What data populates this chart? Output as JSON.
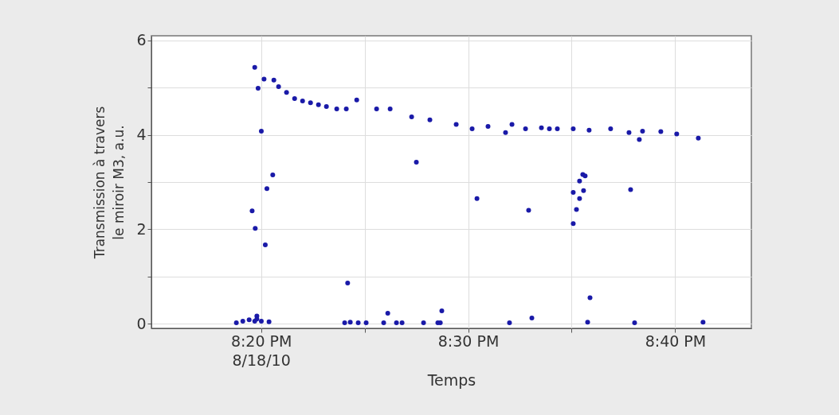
{
  "chart_data": {
    "type": "scatter",
    "xlabel": "Temps",
    "ylabel": "Transmission à travers\nle miroir M3, a.u.",
    "xlim": [
      20.245,
      20.728
    ],
    "ylim": [
      -0.1,
      6.1
    ],
    "xticks": [
      {
        "value": 20.3333,
        "label": "8:20 PM\n8/18/10"
      },
      {
        "value": 20.4167,
        "label": null
      },
      {
        "value": 20.5,
        "label": "8:30 PM"
      },
      {
        "value": 20.5833,
        "label": null
      },
      {
        "value": 20.6667,
        "label": "8:40 PM"
      }
    ],
    "yticks": [
      0,
      {
        "value": 1,
        "label": null
      },
      2,
      {
        "value": 3,
        "label": null
      },
      4,
      {
        "value": 5,
        "label": null
      },
      6
    ],
    "grid": true,
    "marker": "circle",
    "series": [
      {
        "color": "#1a1aa8",
        "x": [
          20.3134,
          20.3186,
          20.3237,
          20.3261,
          20.3282,
          20.3286,
          20.3299,
          20.3309,
          20.3335,
          20.3357,
          20.3367,
          20.338,
          20.3397,
          20.3427,
          20.3282,
          20.3299,
          20.3335,
          20.3436,
          20.3474,
          20.3538,
          20.3603,
          20.3667,
          20.3731,
          20.3795,
          20.3859,
          20.3942,
          20.4019,
          20.403,
          20.4006,
          20.4051,
          20.4103,
          20.4115,
          20.4179,
          20.4263,
          20.432,
          20.4353,
          20.4372,
          20.4423,
          20.4468,
          20.4545,
          20.4583,
          20.4641,
          20.4692,
          20.4756,
          20.4776,
          20.4788,
          20.4904,
          20.5032,
          20.5071,
          20.516,
          20.5301,
          20.5333,
          20.5353,
          20.5462,
          20.5487,
          20.5513,
          20.559,
          20.5654,
          20.5718,
          20.5846,
          20.5846,
          20.5872,
          20.5897,
          20.5846,
          20.5929,
          20.5897,
          20.5923,
          20.5942,
          20.5962,
          20.5974,
          20.5981,
          20.6147,
          20.6295,
          20.6308,
          20.634,
          20.6378,
          20.6404,
          20.6551,
          20.6679,
          20.6853,
          20.6891
        ],
        "values": [
          0.02,
          0.05,
          0.08,
          2.39,
          5.43,
          2.02,
          0.16,
          4.99,
          4.08,
          5.18,
          1.67,
          2.86,
          0.04,
          3.15,
          0.05,
          0.1,
          0.05,
          5.16,
          5.02,
          4.9,
          4.77,
          4.72,
          4.68,
          4.64,
          4.6,
          4.55,
          4.55,
          0.86,
          0.02,
          0.03,
          4.74,
          0.02,
          0.02,
          4.55,
          0.02,
          0.22,
          4.55,
          0.02,
          0.02,
          4.38,
          3.42,
          0.02,
          4.32,
          0.02,
          0.02,
          0.27,
          4.22,
          4.13,
          2.65,
          4.18,
          4.05,
          0.02,
          4.22,
          4.13,
          2.4,
          0.12,
          4.15,
          4.13,
          4.13,
          4.13,
          2.12,
          2.42,
          2.65,
          2.78,
          2.82,
          3.02,
          3.16,
          3.13,
          0.03,
          4.1,
          0.55,
          4.13,
          4.05,
          2.84,
          0.02,
          3.9,
          4.08,
          4.07,
          4.02,
          3.93,
          0.03
        ]
      }
    ]
  }
}
